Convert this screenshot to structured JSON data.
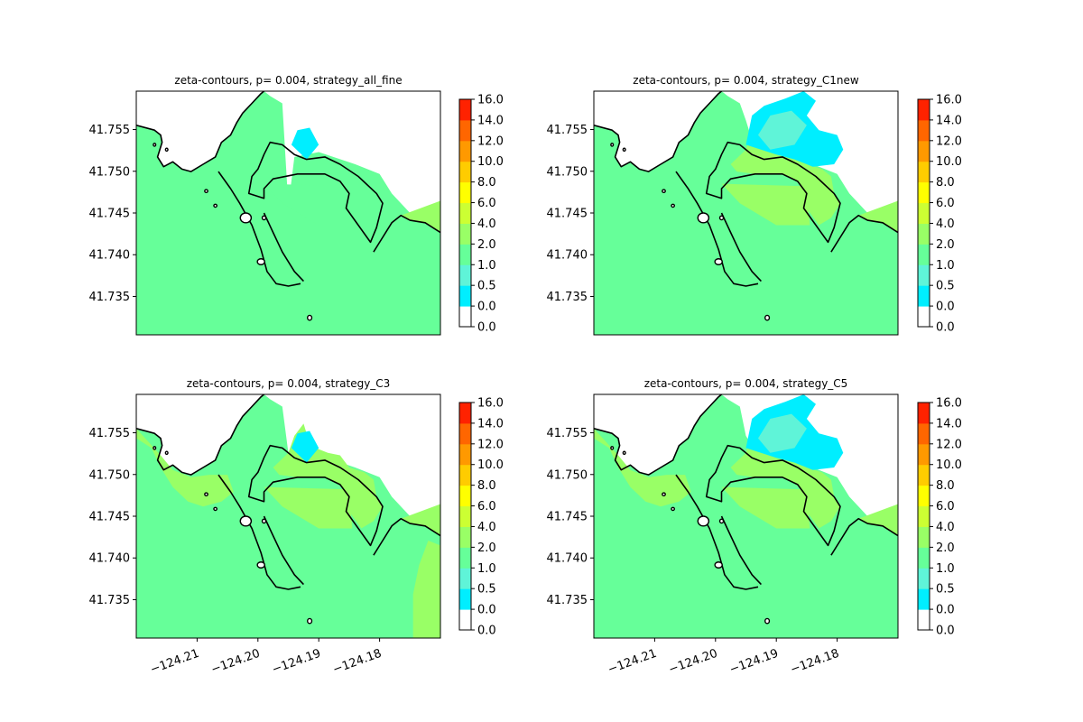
{
  "chart_data": {
    "type": "heatmap",
    "layout": "2x2",
    "colorbar": {
      "ticks": [
        "0.0",
        "0.0",
        "0.5",
        "1.0",
        "2.0",
        "4.0",
        "6.0",
        "8.0",
        "10.0",
        "12.0",
        "14.0",
        "16.0"
      ],
      "levels": [
        {
          "range": [
            0.0,
            0.0
          ],
          "color": "#ffffff"
        },
        {
          "range": [
            0.0,
            0.5
          ],
          "color": "#00eeff"
        },
        {
          "range": [
            0.5,
            1.0
          ],
          "color": "#5ff4d8"
        },
        {
          "range": [
            1.0,
            2.0
          ],
          "color": "#66ff99"
        },
        {
          "range": [
            2.0,
            4.0
          ],
          "color": "#99ff66"
        },
        {
          "range": [
            4.0,
            6.0
          ],
          "color": "#ccff33"
        },
        {
          "range": [
            6.0,
            8.0
          ],
          "color": "#ffff00"
        },
        {
          "range": [
            8.0,
            10.0
          ],
          "color": "#ffcc00"
        },
        {
          "range": [
            10.0,
            12.0
          ],
          "color": "#ff9900"
        },
        {
          "range": [
            12.0,
            14.0
          ],
          "color": "#ff6600"
        },
        {
          "range": [
            14.0,
            16.0
          ],
          "color": "#ff2200"
        }
      ]
    },
    "xlim": [
      -124.22,
      -124.17
    ],
    "ylim": [
      41.7304,
      41.7596
    ],
    "xticks": [
      {
        "value": -124.21,
        "label": "−124.21"
      },
      {
        "value": -124.2,
        "label": "−124.20"
      },
      {
        "value": -124.19,
        "label": "−124.19"
      },
      {
        "value": -124.18,
        "label": "−124.18"
      }
    ],
    "yticks": [
      {
        "value": 41.755,
        "label": "41.755"
      },
      {
        "value": 41.75,
        "label": "41.750"
      },
      {
        "value": 41.745,
        "label": "41.745"
      },
      {
        "value": 41.74,
        "label": "41.740"
      },
      {
        "value": 41.735,
        "label": "41.735"
      }
    ],
    "panels": [
      {
        "title": "zeta-contours, p= 0.004, strategy_all_fine",
        "show_xticks": false,
        "lagoon_plume": false,
        "offshore_plume": false,
        "shore_band": false,
        "coast_plume": false,
        "north_extent": 0.35
      },
      {
        "title": "zeta-contours, p= 0.004, strategy_C1new",
        "show_xticks": false,
        "lagoon_plume": true,
        "offshore_plume": true,
        "shore_band": false,
        "coast_plume": false,
        "north_extent": 0.0
      },
      {
        "title": "zeta-contours, p= 0.004, strategy_C3",
        "show_xticks": true,
        "lagoon_plume": true,
        "offshore_plume": false,
        "shore_band": true,
        "coast_plume": true,
        "north_extent": 0.12
      },
      {
        "title": "zeta-contours, p= 0.004, strategy_C5",
        "show_xticks": true,
        "lagoon_plume": true,
        "offshore_plume": true,
        "shore_band": true,
        "coast_plume": false,
        "north_extent": 0.05
      }
    ]
  }
}
